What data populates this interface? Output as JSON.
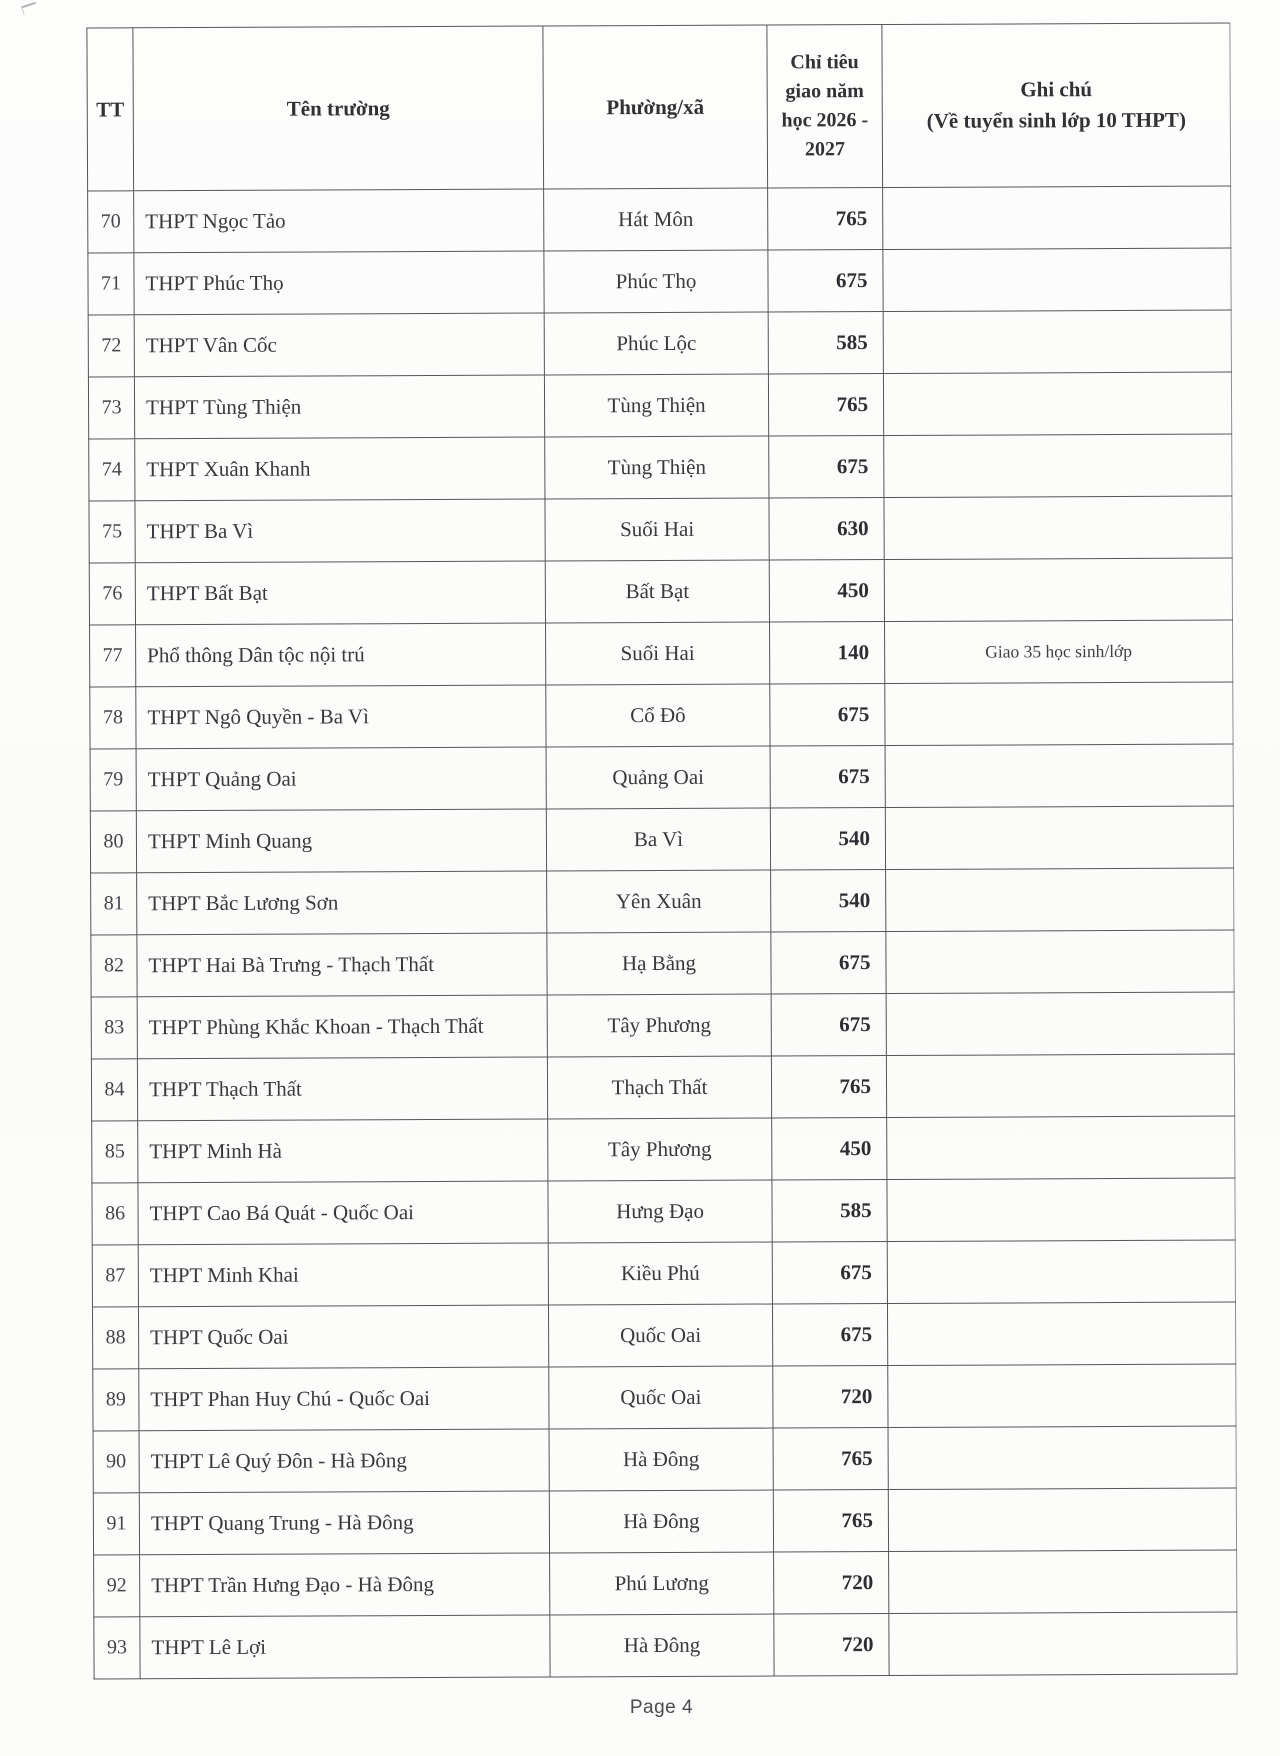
{
  "page": {
    "footer": "Page 4"
  },
  "table": {
    "headers": {
      "tt": "TT",
      "school": "Tên trường",
      "ward": "Phường/xã",
      "quota_lines": [
        "Chỉ tiêu",
        "giao năm",
        "học 2026 -",
        "2027"
      ],
      "note_lines": [
        "Ghi chú",
        "(Về tuyển sinh lớp 10 THPT)"
      ]
    }
  },
  "rows": [
    {
      "tt": "70",
      "school": "THPT Ngọc Tảo",
      "ward": "Hát Môn",
      "quota": "765",
      "note": ""
    },
    {
      "tt": "71",
      "school": "THPT Phúc Thọ",
      "ward": "Phúc Thọ",
      "quota": "675",
      "note": ""
    },
    {
      "tt": "72",
      "school": "THPT Vân Cốc",
      "ward": "Phúc Lộc",
      "quota": "585",
      "note": ""
    },
    {
      "tt": "73",
      "school": "THPT Tùng Thiện",
      "ward": "Tùng Thiện",
      "quota": "765",
      "note": ""
    },
    {
      "tt": "74",
      "school": "THPT Xuân Khanh",
      "ward": "Tùng Thiện",
      "quota": "675",
      "note": ""
    },
    {
      "tt": "75",
      "school": "THPT Ba Vì",
      "ward": "Suối Hai",
      "quota": "630",
      "note": ""
    },
    {
      "tt": "76",
      "school": "THPT Bất Bạt",
      "ward": "Bất Bạt",
      "quota": "450",
      "note": ""
    },
    {
      "tt": "77",
      "school": "Phổ thông Dân tộc nội trú",
      "ward": "Suối Hai",
      "quota": "140",
      "note": "Giao 35 học sinh/lớp"
    },
    {
      "tt": "78",
      "school": "THPT Ngô Quyền - Ba Vì",
      "ward": "Cổ Đô",
      "quota": "675",
      "note": ""
    },
    {
      "tt": "79",
      "school": "THPT Quảng Oai",
      "ward": "Quảng Oai",
      "quota": "675",
      "note": ""
    },
    {
      "tt": "80",
      "school": "THPT Minh Quang",
      "ward": "Ba Vì",
      "quota": "540",
      "note": ""
    },
    {
      "tt": "81",
      "school": "THPT Bắc Lương Sơn",
      "ward": "Yên Xuân",
      "quota": "540",
      "note": ""
    },
    {
      "tt": "82",
      "school": "THPT Hai Bà Trưng - Thạch Thất",
      "ward": "Hạ Bằng",
      "quota": "675",
      "note": ""
    },
    {
      "tt": "83",
      "school": "THPT Phùng Khắc Khoan - Thạch Thất",
      "ward": "Tây Phương",
      "quota": "675",
      "note": ""
    },
    {
      "tt": "84",
      "school": "THPT Thạch Thất",
      "ward": "Thạch Thất",
      "quota": "765",
      "note": ""
    },
    {
      "tt": "85",
      "school": "THPT Minh Hà",
      "ward": "Tây Phương",
      "quota": "450",
      "note": ""
    },
    {
      "tt": "86",
      "school": "THPT Cao Bá Quát - Quốc Oai",
      "ward": "Hưng Đạo",
      "quota": "585",
      "note": ""
    },
    {
      "tt": "87",
      "school": "THPT Minh Khai",
      "ward": "Kiều Phú",
      "quota": "675",
      "note": ""
    },
    {
      "tt": "88",
      "school": "THPT Quốc Oai",
      "ward": "Quốc Oai",
      "quota": "675",
      "note": ""
    },
    {
      "tt": "89",
      "school": "THPT Phan Huy Chú - Quốc Oai",
      "ward": "Quốc Oai",
      "quota": "720",
      "note": ""
    },
    {
      "tt": "90",
      "school": "THPT Lê Quý Đôn - Hà Đông",
      "ward": "Hà Đông",
      "quota": "765",
      "note": ""
    },
    {
      "tt": "91",
      "school": "THPT Quang Trung  - Hà Đông",
      "ward": "Hà Đông",
      "quota": "765",
      "note": ""
    },
    {
      "tt": "92",
      "school": "THPT Trần Hưng Đạo - Hà Đông",
      "ward": "Phú Lương",
      "quota": "720",
      "note": ""
    },
    {
      "tt": "93",
      "school": "THPT Lê Lợi",
      "ward": "Hà Đông",
      "quota": "720",
      "note": ""
    }
  ]
}
